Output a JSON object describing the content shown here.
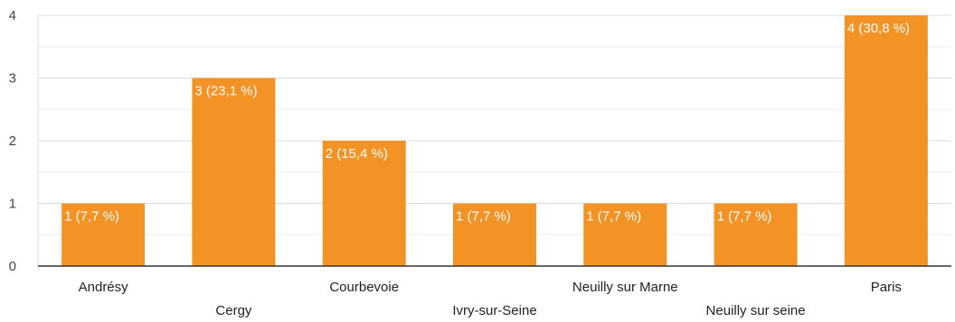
{
  "chart_data": {
    "type": "bar",
    "categories": [
      "Andrésy",
      "Cergy",
      "Courbevoie",
      "Ivry-sur-Seine",
      "Neuilly sur Marne",
      "Neuilly sur seine",
      "Paris"
    ],
    "values": [
      1,
      3,
      2,
      1,
      1,
      1,
      4
    ],
    "data_labels": [
      "1 (7,7 %)",
      "3 (23,1 %)",
      "2 (15,4 %)",
      "1 (7,7 %)",
      "1 (7,7 %)",
      "1 (7,7 %)",
      "4 (30,8 %)"
    ],
    "y_ticks": [
      "0",
      "1",
      "2",
      "3",
      "4"
    ],
    "ylim": [
      0,
      4
    ],
    "grid": true,
    "bar_color": "#F39325",
    "title": "",
    "xlabel": "",
    "ylabel": ""
  }
}
